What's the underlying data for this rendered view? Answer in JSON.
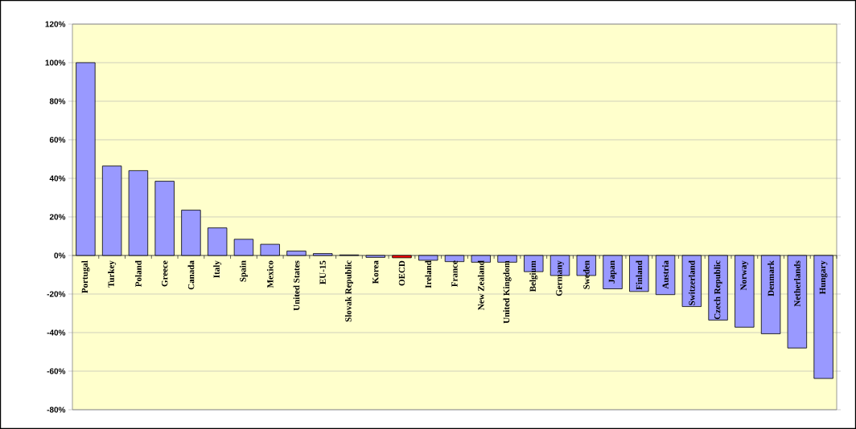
{
  "chart_data": {
    "type": "bar",
    "categories": [
      "Portugal",
      "Turkey",
      "Poland",
      "Greece",
      "Canada",
      "Italy",
      "Spain",
      "Mexico",
      "United States",
      "EU-15",
      "Slovak Republic",
      "Korea",
      "OECD",
      "Ireland",
      "France",
      "New Zealand",
      "United Kingdom",
      "Belgium",
      "Germany",
      "Sweden",
      "Japan",
      "Finland",
      "Austria",
      "Switzerland",
      "Czech Republic",
      "Norway",
      "Denmark",
      "Netherlands",
      "Hungary"
    ],
    "values": [
      100,
      46.4,
      44,
      38.5,
      23.5,
      14.3,
      8.4,
      5.8,
      2.3,
      1,
      0.3,
      -1,
      -1.2,
      -2.5,
      -3.2,
      -3.5,
      -3.5,
      -8.4,
      -10.4,
      -10.4,
      -17.3,
      -18.7,
      -20.3,
      -26.5,
      -33.5,
      -37.2,
      -40.6,
      -48,
      -63.8
    ],
    "colors": [
      "#9999ff",
      "#9999ff",
      "#9999ff",
      "#9999ff",
      "#9999ff",
      "#9999ff",
      "#9999ff",
      "#9999ff",
      "#9999ff",
      "#9999ff",
      "#9999ff",
      "#9999ff",
      "#ff0000",
      "#9999ff",
      "#9999ff",
      "#9999ff",
      "#9999ff",
      "#9999ff",
      "#9999ff",
      "#9999ff",
      "#9999ff",
      "#9999ff",
      "#9999ff",
      "#9999ff",
      "#9999ff",
      "#9999ff",
      "#9999ff",
      "#9999ff",
      "#9999ff"
    ],
    "ylim": [
      -80,
      120
    ],
    "yticks": [
      {
        "value": -80,
        "label": "-80%"
      },
      {
        "value": -60,
        "label": "-60%"
      },
      {
        "value": -40,
        "label": "-40%"
      },
      {
        "value": -20,
        "label": "-20%"
      },
      {
        "value": 0,
        "label": "0%"
      },
      {
        "value": 20,
        "label": "20%"
      },
      {
        "value": 40,
        "label": "40%"
      },
      {
        "value": 60,
        "label": "60%"
      },
      {
        "value": 80,
        "label": "80%"
      },
      {
        "value": 100,
        "label": "100%"
      },
      {
        "value": 120,
        "label": "120%"
      }
    ],
    "grid": "y"
  }
}
